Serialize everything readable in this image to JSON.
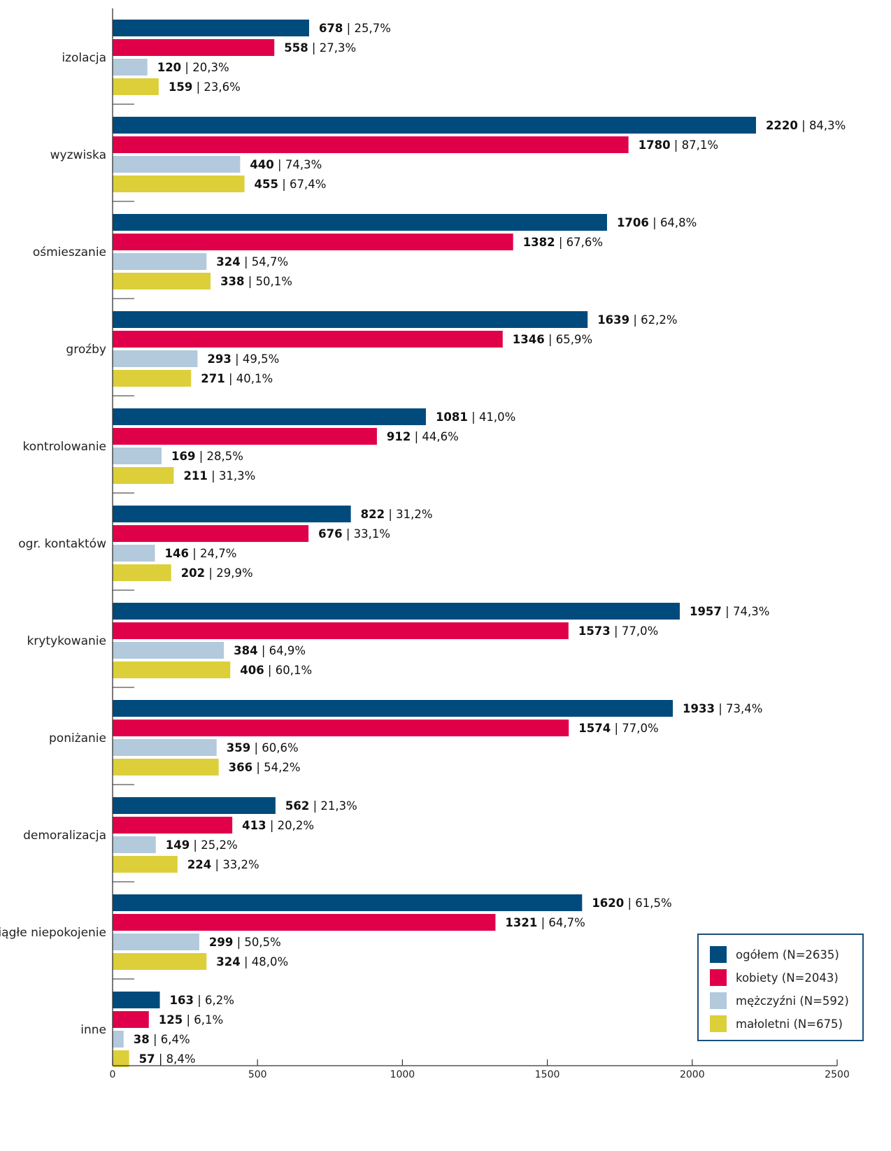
{
  "chart_data": {
    "type": "bar",
    "orientation": "horizontal",
    "title": "",
    "xlabel": "",
    "ylabel": "",
    "xlim": [
      0,
      2500
    ],
    "x_ticks": [
      "0",
      "500",
      "1000",
      "1500",
      "2000",
      "2500"
    ],
    "grid": false,
    "legend_position": "bottom-right",
    "categories": [
      "izolacja",
      "wyzwiska",
      "ośmieszanie",
      "groźby",
      "kontrolowanie",
      "ogr. kontaktów",
      "krytykowanie",
      "poniżanie",
      "demoralizacja",
      "ciągłe niepokojenie",
      "inne"
    ],
    "series": [
      {
        "name": "ogółem (N=2635)",
        "color": "#004a7c",
        "values": [
          678,
          2220,
          1706,
          1639,
          1081,
          822,
          1957,
          1933,
          562,
          1620,
          163
        ],
        "percents": [
          "25,7%",
          "84,3%",
          "64,8%",
          "62,2%",
          "41,0%",
          "31,2%",
          "74,3%",
          "73,4%",
          "21,3%",
          "61,5%",
          "6,2%"
        ]
      },
      {
        "name": "kobiety (N=2043)",
        "color": "#e0004a",
        "values": [
          558,
          1780,
          1382,
          1346,
          912,
          676,
          1573,
          1574,
          413,
          1321,
          125
        ],
        "percents": [
          "27,3%",
          "87,1%",
          "67,6%",
          "65,9%",
          "44,6%",
          "33,1%",
          "77,0%",
          "77,0%",
          "20,2%",
          "64,7%",
          "6,1%"
        ]
      },
      {
        "name": "mężczyźni (N=592)",
        "color": "#b3c9dc",
        "values": [
          120,
          440,
          324,
          293,
          169,
          146,
          384,
          359,
          149,
          299,
          38
        ],
        "percents": [
          "20,3%",
          "74,3%",
          "54,7%",
          "49,5%",
          "28,5%",
          "24,7%",
          "64,9%",
          "60,6%",
          "25,2%",
          "50,5%",
          "6,4%"
        ]
      },
      {
        "name": "małoletni (N=675)",
        "color": "#dccf3a",
        "values": [
          159,
          455,
          338,
          271,
          211,
          202,
          406,
          366,
          224,
          324,
          57
        ],
        "percents": [
          "23,6%",
          "67,4%",
          "50,1%",
          "40,1%",
          "31,3%",
          "29,9%",
          "60,1%",
          "54,2%",
          "33,2%",
          "48,0%",
          "8,4%"
        ]
      }
    ]
  }
}
